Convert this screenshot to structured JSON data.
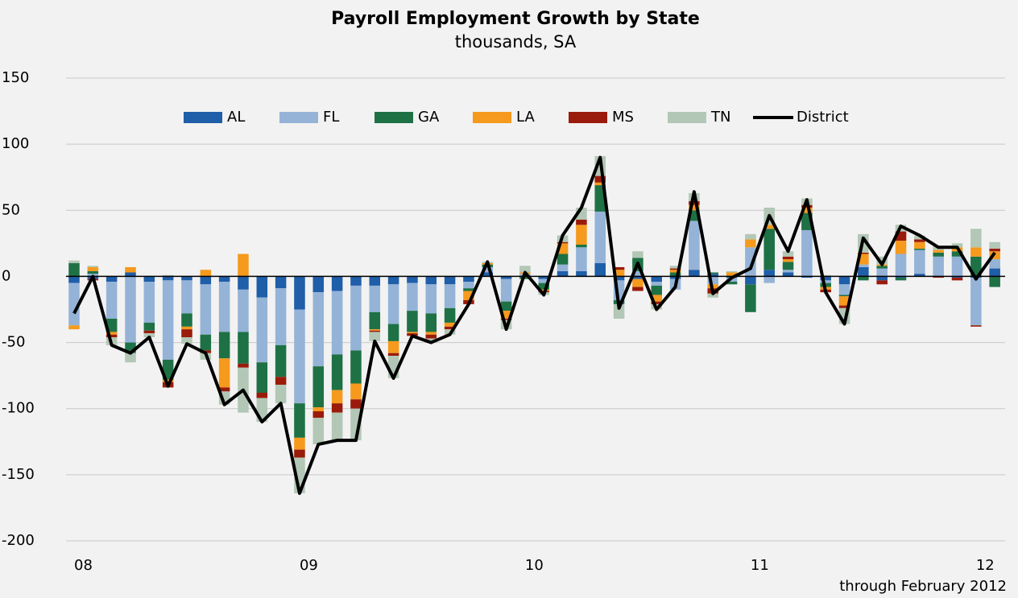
{
  "chart_data": {
    "type": "bar",
    "title": "Payroll Employment Growth by State",
    "subtitle": "thousands, SA",
    "note": "through February 2012",
    "categories": [
      "08",
      null,
      null,
      null,
      null,
      null,
      null,
      null,
      null,
      null,
      null,
      null,
      "09",
      null,
      null,
      null,
      null,
      null,
      null,
      null,
      null,
      null,
      null,
      null,
      "10",
      null,
      null,
      null,
      null,
      null,
      null,
      null,
      null,
      null,
      null,
      null,
      "11",
      null,
      null,
      null,
      null,
      null,
      null,
      null,
      null,
      null,
      null,
      null,
      "12",
      null
    ],
    "ylim": [
      -200,
      150
    ],
    "yticks": [
      -200,
      -150,
      -100,
      -50,
      0,
      50,
      100,
      150
    ],
    "grid": true,
    "legend": "top",
    "stacked": true,
    "series": [
      {
        "name": "AL",
        "color": "#1f5ea8",
        "values": [
          -5,
          -2,
          -4,
          3,
          -4,
          -3,
          -3,
          -6,
          -4,
          -10,
          -16,
          -9,
          -25,
          -12,
          -11,
          -7,
          -7,
          -6,
          -5,
          -6,
          -6,
          -4,
          3,
          -2,
          0,
          -2,
          4,
          4,
          10,
          -3,
          -2,
          -4,
          -2,
          5,
          2,
          -1,
          -6,
          5,
          3,
          -1,
          -3,
          -6,
          7,
          -3,
          -1,
          2,
          0,
          -1,
          -1,
          6
        ]
      },
      {
        "name": "FL",
        "color": "#95b3d7",
        "values": [
          -32,
          2,
          -28,
          -50,
          -31,
          -60,
          -25,
          -38,
          -38,
          -32,
          -49,
          -43,
          -71,
          -56,
          -48,
          -49,
          -20,
          -30,
          -21,
          -22,
          -18,
          -5,
          4,
          -17,
          2,
          -3,
          5,
          18,
          39,
          -15,
          4,
          -3,
          -8,
          37,
          -6,
          -3,
          22,
          -5,
          2,
          35,
          -2,
          -8,
          2,
          6,
          17,
          18,
          15,
          15,
          -36,
          7
        ]
      },
      {
        "name": "GA",
        "color": "#1e7145",
        "values": [
          10,
          2,
          -10,
          -8,
          -6,
          -15,
          -10,
          -12,
          -20,
          -24,
          -23,
          -24,
          -26,
          -31,
          -27,
          -25,
          -13,
          -13,
          -16,
          -14,
          -11,
          -2,
          2,
          -7,
          -2,
          -5,
          8,
          2,
          20,
          -3,
          10,
          -7,
          3,
          8,
          1,
          -2,
          -21,
          31,
          6,
          13,
          -3,
          -1,
          -3,
          2,
          -2,
          1,
          3,
          4,
          15,
          -8
        ]
      },
      {
        "name": "LA",
        "color": "#f59a1d",
        "values": [
          -3,
          3,
          -2,
          4,
          0,
          -2,
          -2,
          5,
          -22,
          17,
          0,
          0,
          -9,
          -3,
          -10,
          -12,
          -1,
          -9,
          -1,
          -2,
          -3,
          -7,
          1,
          -6,
          1,
          -1,
          8,
          15,
          2,
          5,
          -6,
          -5,
          2,
          4,
          -3,
          3,
          6,
          3,
          2,
          4,
          -2,
          -7,
          8,
          1,
          10,
          5,
          2,
          3,
          7,
          6
        ]
      },
      {
        "name": "MS",
        "color": "#9a1b0b",
        "values": [
          0,
          -1,
          -2,
          0,
          -2,
          -4,
          -6,
          -2,
          -3,
          -3,
          -4,
          -6,
          -6,
          -5,
          -7,
          -7,
          -1,
          -2,
          -2,
          -3,
          -2,
          -3,
          0,
          -1,
          0,
          -1,
          1,
          4,
          5,
          2,
          -3,
          -2,
          1,
          3,
          -4,
          0,
          0,
          0,
          2,
          2,
          -2,
          -2,
          1,
          -3,
          7,
          2,
          -1,
          -2,
          -1,
          2
        ]
      },
      {
        "name": "TN",
        "color": "#b2c7b5",
        "values": [
          2,
          1,
          -6,
          -7,
          -3,
          1,
          -5,
          -5,
          -10,
          -34,
          -18,
          -14,
          -27,
          -20,
          -21,
          -24,
          -7,
          -17,
          0,
          -3,
          -4,
          0,
          1,
          -7,
          5,
          -2,
          5,
          9,
          15,
          -11,
          5,
          -4,
          2,
          6,
          -3,
          1,
          4,
          13,
          4,
          5,
          1,
          -12,
          14,
          6,
          5,
          3,
          3,
          3,
          14,
          5
        ]
      },
      {
        "name": "District",
        "color": "#000000",
        "type": "line",
        "values": [
          -28,
          0,
          -52,
          -58,
          -46,
          -83,
          -51,
          -58,
          -97,
          -86,
          -110,
          -96,
          -164,
          -127,
          -124,
          -124,
          -49,
          -77,
          -45,
          -50,
          -44,
          -21,
          11,
          -40,
          3,
          -14,
          31,
          52,
          90,
          -24,
          10,
          -25,
          -8,
          64,
          -13,
          -1,
          6,
          46,
          19,
          58,
          -12,
          -36,
          29,
          9,
          38,
          31,
          22,
          22,
          -2,
          18
        ]
      }
    ]
  }
}
